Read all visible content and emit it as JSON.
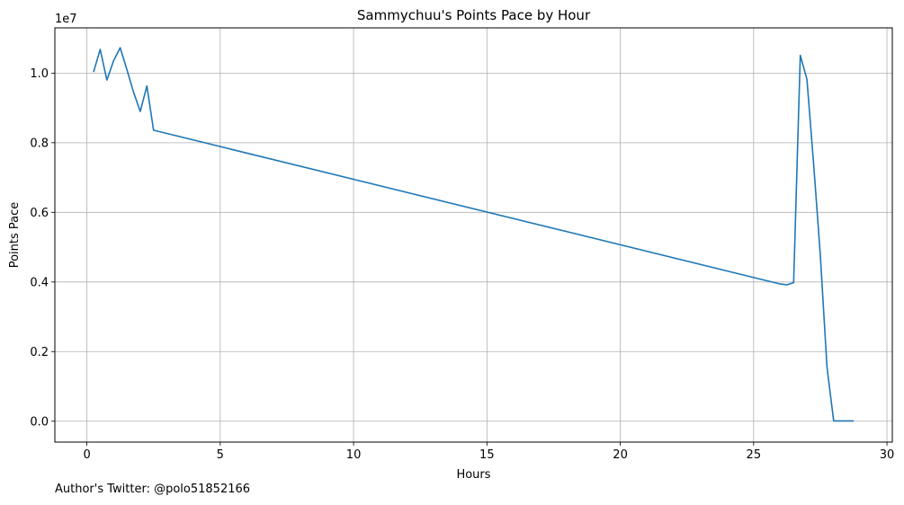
{
  "chart_data": {
    "type": "line",
    "title": "Sammychuu's Points Pace by Hour",
    "xlabel": "Hours",
    "ylabel": "Points Pace",
    "y_offset_label": "1e7",
    "xlim": [
      -1.2,
      30.2
    ],
    "ylim": [
      -0.06,
      1.13
    ],
    "x_ticks": [
      0,
      5,
      10,
      15,
      20,
      25,
      30
    ],
    "x_tick_labels": [
      "0",
      "5",
      "10",
      "15",
      "20",
      "25",
      "30"
    ],
    "y_ticks": [
      0.0,
      0.2,
      0.4,
      0.6,
      0.8,
      1.0
    ],
    "y_tick_labels": [
      "0.0",
      "0.2",
      "0.4",
      "0.6",
      "0.8",
      "1.0"
    ],
    "grid": true,
    "series": [
      {
        "color": "#1f77b4",
        "x": [
          0.25,
          0.5,
          0.75,
          1.0,
          1.25,
          1.5,
          1.75,
          2.0,
          2.25,
          2.5,
          26.0,
          26.25,
          26.5,
          26.75,
          27.0,
          27.25,
          27.5,
          27.75,
          28.0,
          28.25,
          28.5,
          28.75
        ],
        "y": [
          1.003,
          1.068,
          0.98,
          1.035,
          1.073,
          1.01,
          0.945,
          0.89,
          0.963,
          0.836,
          0.394,
          0.392,
          0.398,
          1.051,
          0.982,
          0.74,
          0.48,
          0.155,
          0.001,
          0.001,
          0.001,
          0.001
        ]
      }
    ]
  },
  "footnote": "Author's Twitter: @polo51852166"
}
